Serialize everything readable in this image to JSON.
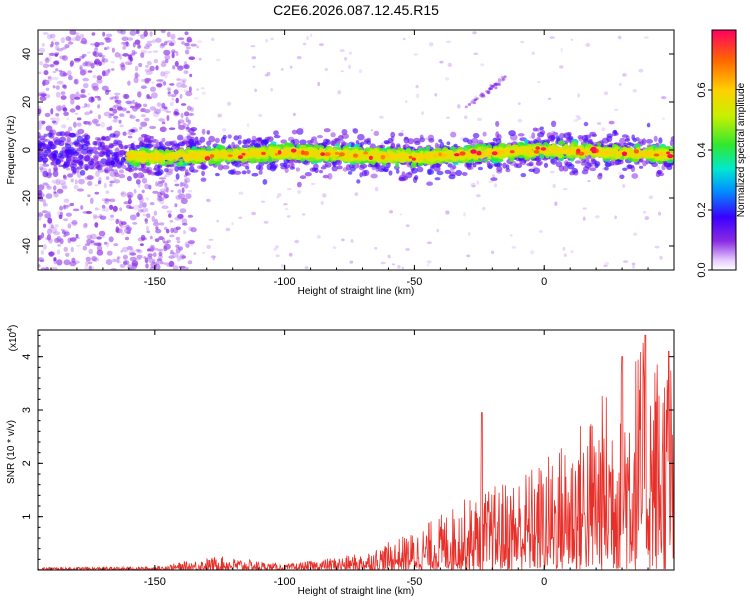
{
  "title": "C2E6.2026.087.12.45.R15",
  "colors": {
    "snr_line": "#e8302a",
    "band_core": "#00c8ff",
    "noise": "#8a2be2",
    "background": "#ffffff"
  },
  "colorbar": {
    "label": "Normalized spectral amplitude",
    "ticks": [
      "0.0",
      "0.2",
      "0.4",
      "0.6"
    ],
    "tick_values": [
      0.0,
      0.2,
      0.4,
      0.6
    ],
    "range": [
      0.0,
      0.8
    ],
    "colormap": "rainbow"
  },
  "chart_data": [
    {
      "type": "heatmap",
      "xlabel": "Height of straight line (km)",
      "ylabel": "Frequency (Hz)",
      "xlim": [
        -195,
        50
      ],
      "ylim": [
        -50,
        50
      ],
      "xticks": [
        -150,
        -100,
        -50,
        0
      ],
      "xtick_labels": [
        "-150",
        "-100",
        "-50",
        "0"
      ],
      "yticks": [
        -40,
        -20,
        0,
        20,
        40
      ],
      "ytick_labels": [
        "-40",
        "-20",
        "0",
        "20",
        "40"
      ],
      "band_center_frequency": [
        {
          "x": -195,
          "y": -1
        },
        {
          "x": -150,
          "y": -3
        },
        {
          "x": -100,
          "y": -1
        },
        {
          "x": -50,
          "y": -3
        },
        {
          "x": 0,
          "y": 0
        },
        {
          "x": 50,
          "y": -2
        }
      ],
      "band_halfwidth_hz": 5,
      "noise_region": [
        -195,
        -135
      ],
      "drift_feature": {
        "x_start": -30,
        "x_end": -15,
        "y_start": 18,
        "y_end": 30
      }
    },
    {
      "type": "line",
      "xlabel": "Height of straight line (km)",
      "ylabel": "SNR (10 * v/v)",
      "yscale_label": "(x10",
      "yscale_exponent": "4",
      "xlim": [
        -195,
        50
      ],
      "ylim": [
        0,
        4.5
      ],
      "xticks": [
        -150,
        -100,
        -50,
        0
      ],
      "xtick_labels": [
        "-150",
        "-100",
        "-50",
        "0"
      ],
      "yticks": [
        1,
        2,
        3,
        4
      ],
      "ytick_labels": [
        "1",
        "2",
        "3",
        "4"
      ],
      "envelope": [
        {
          "x": -195,
          "y": 0.05
        },
        {
          "x": -150,
          "y": 0.06
        },
        {
          "x": -125,
          "y": 0.25
        },
        {
          "x": -100,
          "y": 0.1
        },
        {
          "x": -70,
          "y": 0.3
        },
        {
          "x": -50,
          "y": 0.7
        },
        {
          "x": -30,
          "y": 1.3
        },
        {
          "x": -20,
          "y": 1.5
        },
        {
          "x": 0,
          "y": 2.0
        },
        {
          "x": 20,
          "y": 3.0
        },
        {
          "x": 35,
          "y": 4.1
        },
        {
          "x": 50,
          "y": 4.0
        }
      ],
      "peaks": [
        {
          "x": -24,
          "y": 2.95
        },
        {
          "x": 30,
          "y": 4.0
        },
        {
          "x": 39,
          "y": 4.4
        },
        {
          "x": 48,
          "y": 4.1
        }
      ]
    }
  ]
}
